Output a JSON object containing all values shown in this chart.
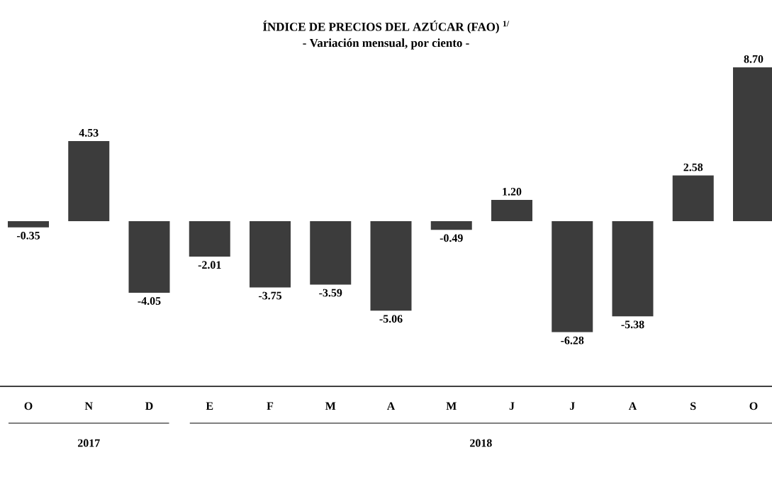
{
  "chart_data": {
    "type": "bar",
    "title": "ÍNDICE DE PRECIOS DEL AZÚCAR (FAO) $^{1/}$",
    "subtitle": "- Variación mensual, por ciento -",
    "categories": [
      "O",
      "N",
      "D",
      "E",
      "F",
      "M",
      "A",
      "M",
      "J",
      "J",
      "A",
      "S",
      "O"
    ],
    "values": [
      -0.35,
      4.53,
      -4.05,
      -2.01,
      -3.75,
      -3.59,
      -5.06,
      -0.49,
      1.2,
      -6.28,
      -5.38,
      2.58,
      8.7
    ],
    "value_labels": [
      "-0.35",
      "4.53",
      "-4.05",
      "-2.01",
      "-3.75",
      "-3.59",
      "-5.06",
      "-0.49",
      "1.20",
      "-6.28",
      "-5.38",
      "2.58",
      "8.70"
    ],
    "color": "#3c3c3c",
    "annotations": [
      "2017",
      "2018"
    ]
  }
}
